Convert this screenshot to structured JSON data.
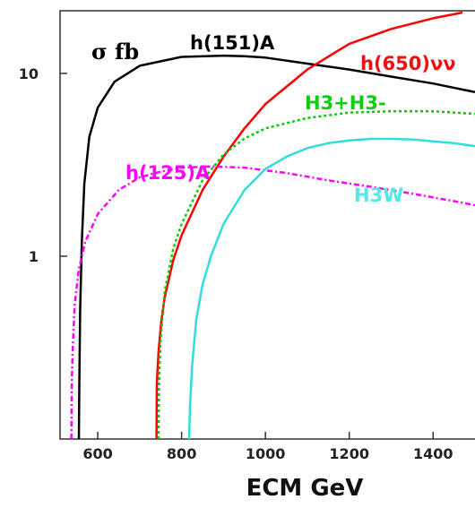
{
  "chart_data": {
    "type": "line",
    "title": "",
    "xlabel": "ECM GeV",
    "ylabel": "σ fb",
    "xscale": "linear",
    "yscale": "log",
    "xlim": [
      510,
      1500
    ],
    "ylim": [
      0.1,
      22
    ],
    "xticks": [
      600,
      800,
      1000,
      1200,
      1400
    ],
    "xtick_labels": [
      "600",
      "800",
      "1000",
      "1200",
      "1400"
    ],
    "yticks": [
      1,
      10
    ],
    "ytick_labels": [
      "1",
      "10"
    ],
    "grid": false,
    "legend": "none (inline curve labels)",
    "series": [
      {
        "name": "h(151)A",
        "color": "#000000",
        "dash": "solid",
        "x": [
          555,
          556,
          558,
          562,
          568,
          580,
          600,
          640,
          700,
          800,
          900,
          950,
          1000,
          1100,
          1200,
          1300,
          1400,
          1500
        ],
        "y": [
          0.1,
          0.2,
          0.5,
          1.2,
          2.5,
          4.5,
          6.5,
          9.0,
          11.0,
          12.3,
          12.5,
          12.4,
          12.2,
          11.3,
          10.5,
          9.6,
          8.8,
          7.9
        ]
      },
      {
        "name": "h(650)νν",
        "color": "#ff0000",
        "dash": "solid",
        "x": [
          740,
          741,
          745,
          752,
          760,
          780,
          800,
          850,
          900,
          950,
          1000,
          1100,
          1200,
          1300,
          1400,
          1470
        ],
        "y": [
          0.1,
          0.2,
          0.3,
          0.45,
          0.6,
          0.95,
          1.3,
          2.3,
          3.5,
          5.0,
          6.8,
          10.5,
          14.5,
          17.5,
          20.0,
          21.5
        ]
      },
      {
        "name": "H3+H3-",
        "color": "#00cc00",
        "dash": "dotted",
        "x": [
          745,
          746,
          750,
          760,
          780,
          800,
          850,
          900,
          950,
          1000,
          1100,
          1200,
          1300,
          1400,
          1500
        ],
        "y": [
          0.1,
          0.2,
          0.35,
          0.65,
          1.1,
          1.5,
          2.6,
          3.6,
          4.4,
          5.0,
          5.7,
          6.1,
          6.2,
          6.2,
          6.0
        ]
      },
      {
        "name": "h(125)A",
        "color": "#ff00ff",
        "dash": "dashdot",
        "x": [
          537,
          538,
          540,
          545,
          555,
          570,
          600,
          650,
          700,
          750,
          800,
          870,
          950,
          1050,
          1150,
          1250,
          1350,
          1450,
          1500
        ],
        "y": [
          0.1,
          0.2,
          0.3,
          0.55,
          0.85,
          1.2,
          1.7,
          2.3,
          2.7,
          2.9,
          3.05,
          3.1,
          3.05,
          2.85,
          2.6,
          2.4,
          2.2,
          2.0,
          1.9
        ]
      },
      {
        "name": "H3W",
        "color": "#33dddd",
        "dash": "solid",
        "x": [
          818,
          820,
          825,
          835,
          850,
          870,
          900,
          950,
          1000,
          1050,
          1100,
          1150,
          1200,
          1250,
          1300,
          1350,
          1400,
          1450,
          1500
        ],
        "y": [
          0.1,
          0.15,
          0.25,
          0.45,
          0.7,
          1.0,
          1.5,
          2.3,
          3.0,
          3.5,
          3.9,
          4.15,
          4.3,
          4.38,
          4.38,
          4.35,
          4.25,
          4.15,
          4.0
        ]
      }
    ],
    "annotations": [
      "σ fb",
      "h(151)A",
      "h(650)νν",
      "H3+H3-",
      "h(125)A",
      "H3W"
    ]
  }
}
